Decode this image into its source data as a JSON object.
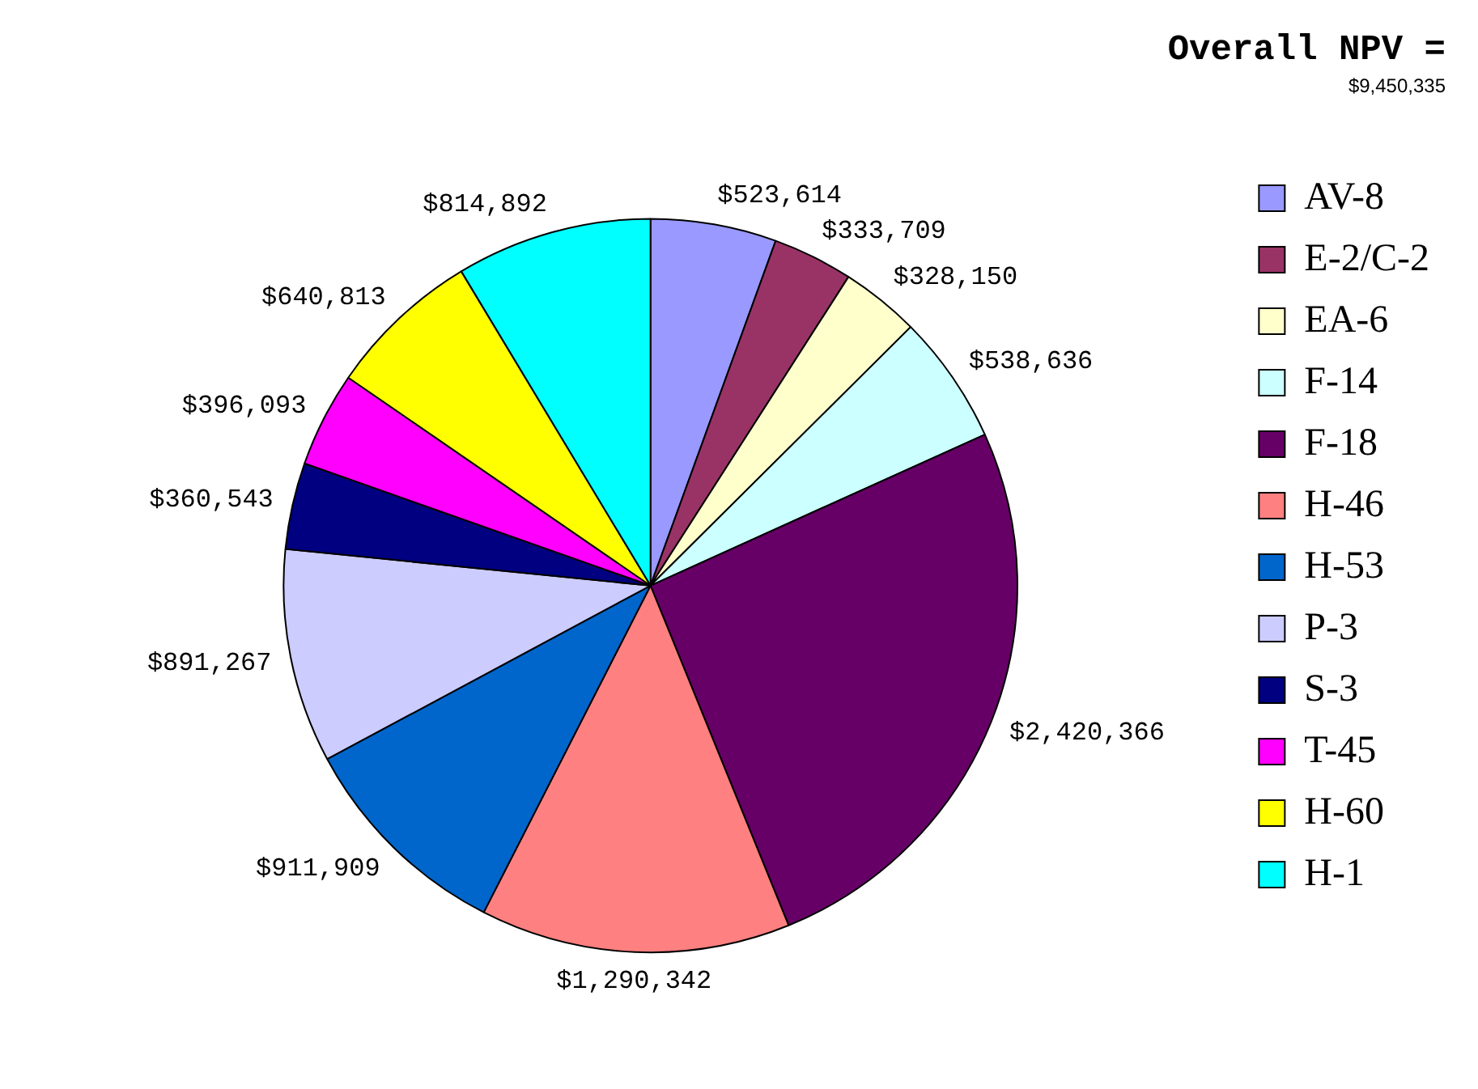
{
  "chart_data": {
    "type": "pie",
    "title": "Overall NPV =",
    "subtitle": "$9,450,335",
    "categories": [
      "AV-8",
      "E-2/C-2",
      "EA-6",
      "F-14",
      "F-18",
      "H-46",
      "H-53",
      "P-3",
      "S-3",
      "T-45",
      "H-60",
      "H-1"
    ],
    "values": [
      523614,
      333709,
      328150,
      538636,
      2420366,
      1290342,
      911909,
      891267,
      360543,
      396093,
      640813,
      814892
    ],
    "colors": [
      "#9999ff",
      "#993366",
      "#ffffcc",
      "#ccffff",
      "#660066",
      "#ff8080",
      "#0066cc",
      "#ccccff",
      "#000080",
      "#ff00ff",
      "#ffff00",
      "#00ffff"
    ],
    "value_labels": [
      "$523,614",
      "$333,709",
      "$328,150",
      "$538,636",
      "$2,420,366",
      "$1,290,342",
      "$911,909",
      "$891,267",
      "$360,543",
      "$396,093",
      "$640,813",
      "$814,892"
    ],
    "legend": "right"
  }
}
